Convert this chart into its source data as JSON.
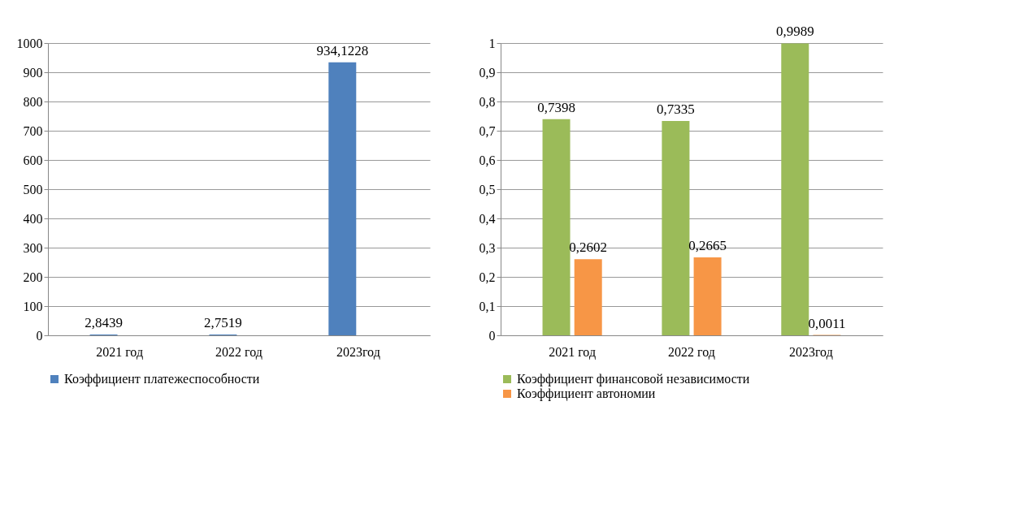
{
  "chart_data": [
    {
      "type": "bar",
      "categories": [
        "2021 год",
        "2022 год",
        "2023год"
      ],
      "series": [
        {
          "name": "Коэффициент платежеспособности",
          "color": "#4f81bd",
          "values": [
            2.8439,
            2.7519,
            934.1228
          ],
          "value_labels": [
            "2,8439",
            "2,7519",
            "934,1228"
          ]
        }
      ],
      "ylim": [
        0,
        1000
      ],
      "yticks": [
        0,
        100,
        200,
        300,
        400,
        500,
        600,
        700,
        800,
        900,
        1000
      ],
      "grid": "y",
      "legend": "bottom"
    },
    {
      "type": "bar",
      "categories": [
        "2021 год",
        "2022 год",
        "2023год"
      ],
      "series": [
        {
          "name": "Коэффициент финансовой независимости",
          "color": "#9bbb59",
          "values": [
            0.7398,
            0.7335,
            0.9989
          ],
          "value_labels": [
            "0,7398",
            "0,7335",
            "0,9989"
          ]
        },
        {
          "name": "Коэффициент автономии",
          "color": "#f79646",
          "values": [
            0.2602,
            0.2665,
            0.0011
          ],
          "value_labels": [
            "0,2602",
            "0,2665",
            "0,0011"
          ]
        }
      ],
      "ylim": [
        0,
        1
      ],
      "yticks": [
        0,
        {
          "value": 0.1,
          "label": "0,1"
        },
        {
          "value": 0.2,
          "label": "0,2"
        },
        {
          "value": 0.3,
          "label": "0,3"
        },
        {
          "value": 0.4,
          "label": "0,4"
        },
        {
          "value": 0.5,
          "label": "0,5"
        },
        {
          "value": 0.6,
          "label": "0,6"
        },
        {
          "value": 0.7,
          "label": "0,7"
        },
        {
          "value": 0.8,
          "label": "0,8"
        },
        {
          "value": 0.9,
          "label": "0,9"
        },
        1
      ],
      "grid": "y",
      "legend": "bottom"
    }
  ]
}
